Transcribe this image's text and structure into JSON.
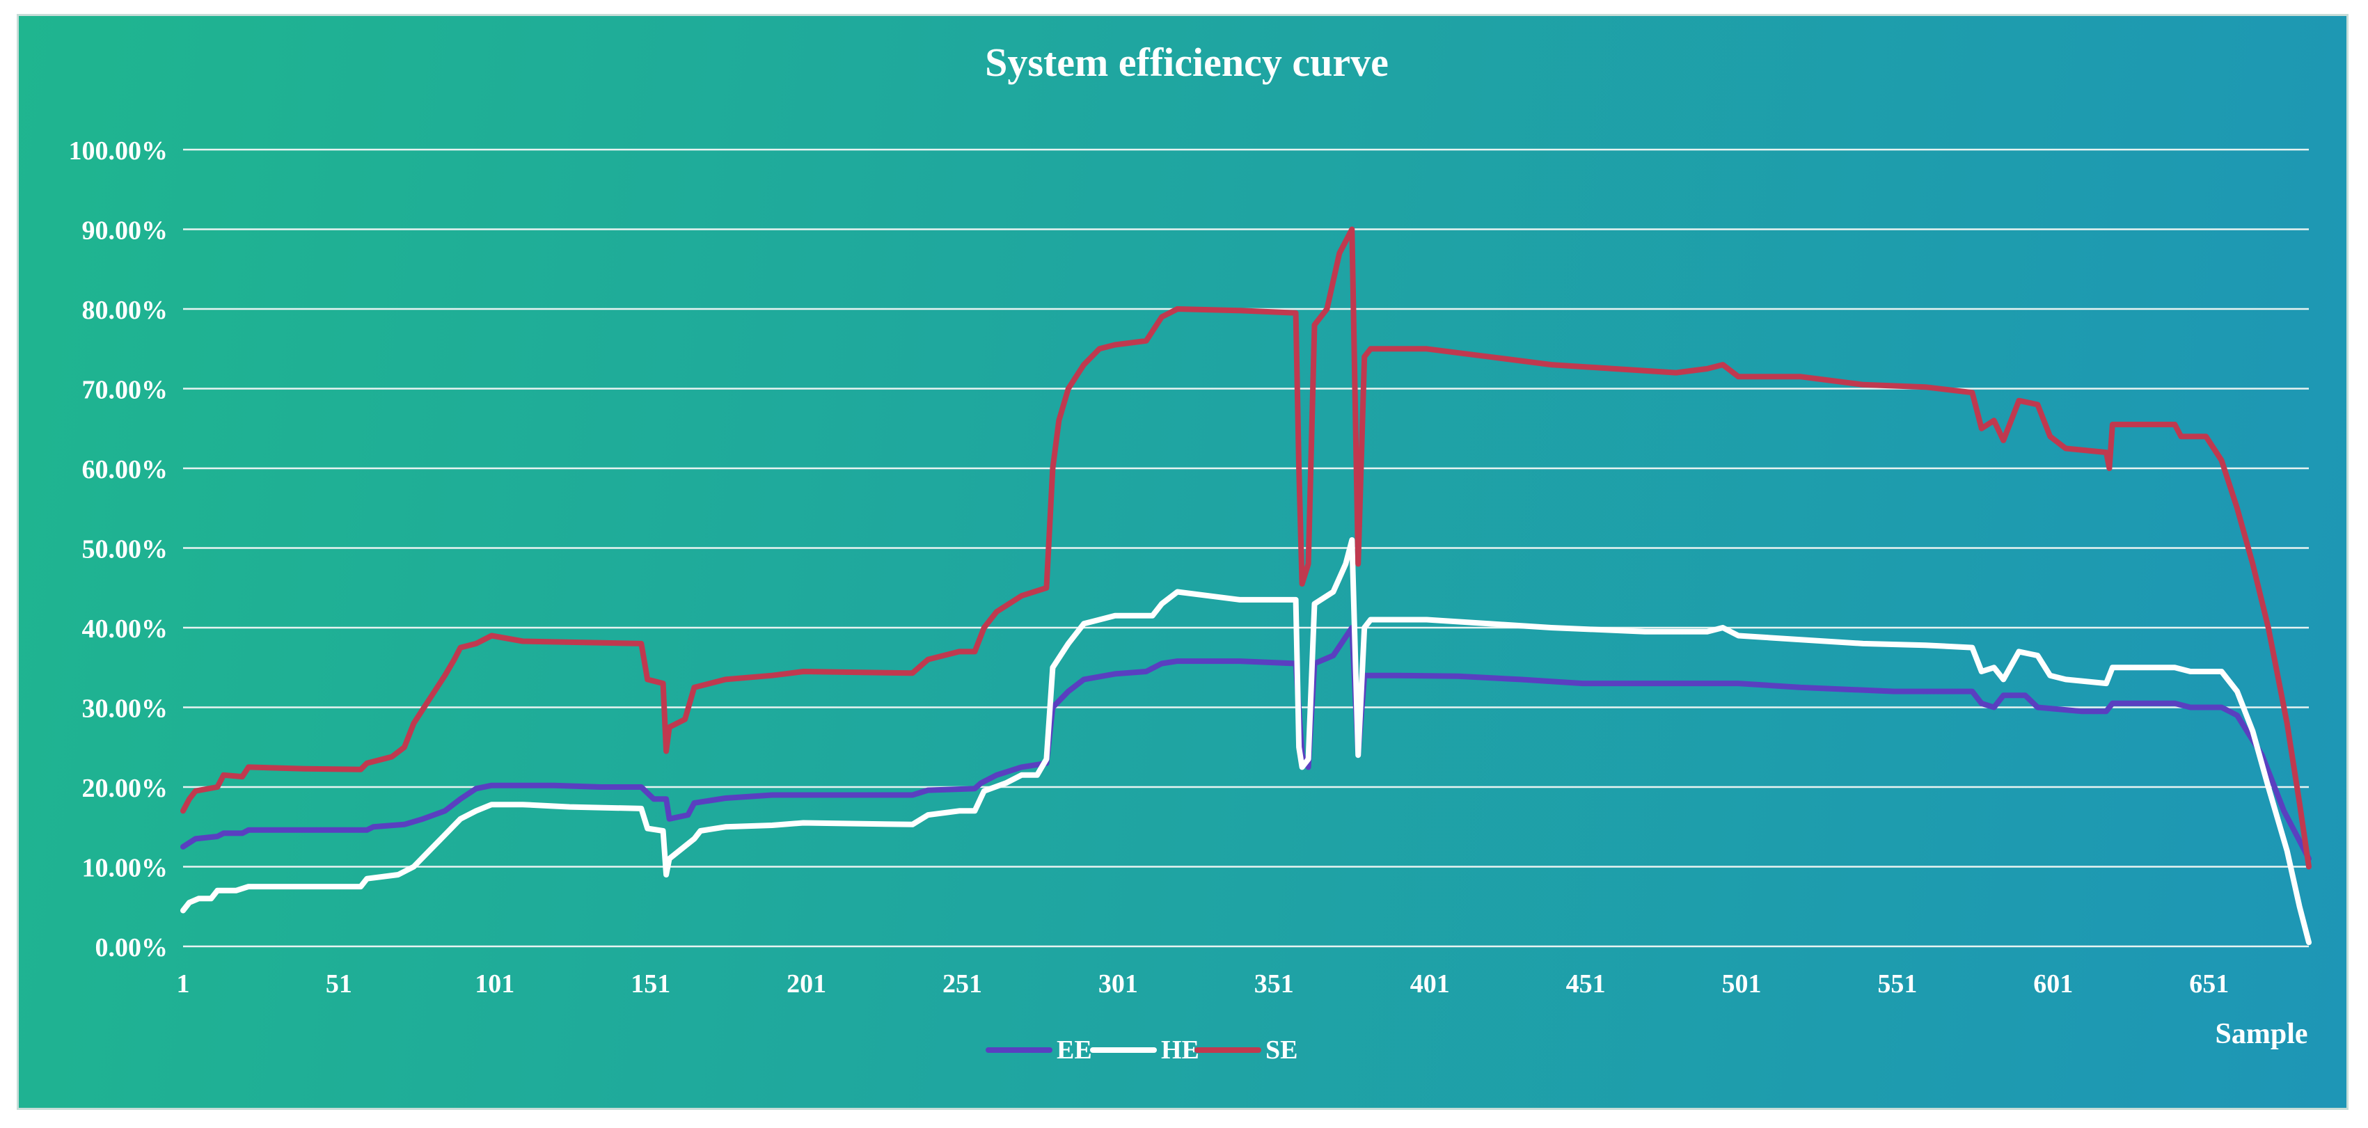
{
  "chart_data": {
    "type": "line",
    "title": "System efficiency curve",
    "xlabel": "Sample",
    "ylabel": "",
    "xlim": [
      1,
      683
    ],
    "ylim": [
      0,
      100
    ],
    "x_ticks": [
      1,
      51,
      101,
      151,
      201,
      251,
      301,
      351,
      401,
      451,
      501,
      551,
      601,
      651
    ],
    "y_ticks": [
      "0.00%",
      "10.00%",
      "20.00%",
      "30.00%",
      "40.00%",
      "50.00%",
      "60.00%",
      "70.00%",
      "80.00%",
      "90.00%",
      "100.00%"
    ],
    "grid": "horizontal",
    "legend_position": "bottom",
    "series": [
      {
        "name": "EE",
        "color": "#5a3fc0",
        "points": [
          [
            1,
            12.5
          ],
          [
            5,
            13.5
          ],
          [
            12,
            13.8
          ],
          [
            14,
            14.2
          ],
          [
            20,
            14.2
          ],
          [
            22,
            14.6
          ],
          [
            40,
            14.6
          ],
          [
            60,
            14.6
          ],
          [
            62,
            15
          ],
          [
            72,
            15.3
          ],
          [
            78,
            16
          ],
          [
            85,
            17
          ],
          [
            90,
            18.5
          ],
          [
            95,
            19.8
          ],
          [
            100,
            20.2
          ],
          [
            120,
            20.2
          ],
          [
            135,
            20
          ],
          [
            148,
            20
          ],
          [
            152,
            18.5
          ],
          [
            156,
            18.5
          ],
          [
            157,
            16
          ],
          [
            163,
            16.5
          ],
          [
            165,
            18
          ],
          [
            175,
            18.6
          ],
          [
            190,
            19
          ],
          [
            200,
            19
          ],
          [
            235,
            19
          ],
          [
            240,
            19.6
          ],
          [
            255,
            19.8
          ],
          [
            257,
            20.5
          ],
          [
            262,
            21.5
          ],
          [
            270,
            22.5
          ],
          [
            275,
            22.8
          ],
          [
            278,
            23
          ],
          [
            280,
            30
          ],
          [
            285,
            32
          ],
          [
            290,
            33.5
          ],
          [
            300,
            34.2
          ],
          [
            310,
            34.5
          ],
          [
            315,
            35.5
          ],
          [
            320,
            35.8
          ],
          [
            340,
            35.8
          ],
          [
            358,
            35.5
          ],
          [
            360,
            24
          ],
          [
            362,
            22.5
          ],
          [
            364,
            35.5
          ],
          [
            370,
            36.5
          ],
          [
            376,
            40
          ],
          [
            378,
            24
          ],
          [
            380,
            34
          ],
          [
            390,
            34
          ],
          [
            410,
            33.9
          ],
          [
            430,
            33.5
          ],
          [
            450,
            33
          ],
          [
            500,
            33
          ],
          [
            520,
            32.5
          ],
          [
            550,
            32
          ],
          [
            575,
            32
          ],
          [
            578,
            30.5
          ],
          [
            582,
            30
          ],
          [
            585,
            31.5
          ],
          [
            592,
            31.5
          ],
          [
            596,
            30
          ],
          [
            610,
            29.5
          ],
          [
            618,
            29.5
          ],
          [
            620,
            30.5
          ],
          [
            640,
            30.5
          ],
          [
            645,
            30
          ],
          [
            655,
            30
          ],
          [
            660,
            29
          ],
          [
            668,
            24
          ],
          [
            675,
            17
          ],
          [
            683,
            11
          ]
        ]
      },
      {
        "name": "HE",
        "color": "#ffffff",
        "points": [
          [
            1,
            4.5
          ],
          [
            3,
            5.5
          ],
          [
            6,
            6
          ],
          [
            10,
            6
          ],
          [
            12,
            7
          ],
          [
            18,
            7
          ],
          [
            22,
            7.5
          ],
          [
            40,
            7.5
          ],
          [
            58,
            7.5
          ],
          [
            60,
            8.5
          ],
          [
            70,
            9
          ],
          [
            75,
            10
          ],
          [
            80,
            12
          ],
          [
            85,
            14
          ],
          [
            90,
            16
          ],
          [
            95,
            17
          ],
          [
            100,
            17.8
          ],
          [
            110,
            17.8
          ],
          [
            125,
            17.5
          ],
          [
            148,
            17.3
          ],
          [
            150,
            14.8
          ],
          [
            155,
            14.5
          ],
          [
            156,
            9
          ],
          [
            157,
            11
          ],
          [
            165,
            13.5
          ],
          [
            167,
            14.5
          ],
          [
            175,
            15
          ],
          [
            190,
            15.2
          ],
          [
            200,
            15.5
          ],
          [
            235,
            15.3
          ],
          [
            240,
            16.5
          ],
          [
            250,
            17
          ],
          [
            255,
            17
          ],
          [
            258,
            19.5
          ],
          [
            265,
            20.5
          ],
          [
            270,
            21.5
          ],
          [
            275,
            21.5
          ],
          [
            278,
            23.5
          ],
          [
            280,
            35
          ],
          [
            285,
            38
          ],
          [
            290,
            40.5
          ],
          [
            300,
            41.5
          ],
          [
            312,
            41.5
          ],
          [
            315,
            43
          ],
          [
            320,
            44.5
          ],
          [
            330,
            44
          ],
          [
            340,
            43.5
          ],
          [
            358,
            43.5
          ],
          [
            359,
            25
          ],
          [
            360,
            22.5
          ],
          [
            362,
            23.5
          ],
          [
            364,
            43
          ],
          [
            370,
            44.5
          ],
          [
            374,
            48
          ],
          [
            376,
            51
          ],
          [
            378,
            24
          ],
          [
            380,
            40
          ],
          [
            382,
            41
          ],
          [
            400,
            41
          ],
          [
            420,
            40.5
          ],
          [
            440,
            40
          ],
          [
            470,
            39.5
          ],
          [
            490,
            39.5
          ],
          [
            495,
            40
          ],
          [
            500,
            39
          ],
          [
            520,
            38.5
          ],
          [
            540,
            38
          ],
          [
            560,
            37.8
          ],
          [
            575,
            37.5
          ],
          [
            578,
            34.5
          ],
          [
            582,
            35
          ],
          [
            585,
            33.5
          ],
          [
            590,
            37
          ],
          [
            596,
            36.5
          ],
          [
            600,
            34
          ],
          [
            605,
            33.5
          ],
          [
            618,
            33
          ],
          [
            620,
            35
          ],
          [
            640,
            35
          ],
          [
            645,
            34.5
          ],
          [
            655,
            34.5
          ],
          [
            660,
            32
          ],
          [
            665,
            27
          ],
          [
            670,
            20
          ],
          [
            676,
            12
          ],
          [
            680,
            5
          ],
          [
            683,
            0.5
          ]
        ]
      },
      {
        "name": "SE",
        "color": "#c0394f",
        "points": [
          [
            1,
            17
          ],
          [
            3,
            18.5
          ],
          [
            5,
            19.5
          ],
          [
            12,
            20
          ],
          [
            14,
            21.5
          ],
          [
            20,
            21.3
          ],
          [
            22,
            22.5
          ],
          [
            40,
            22.3
          ],
          [
            58,
            22.2
          ],
          [
            60,
            23
          ],
          [
            68,
            23.8
          ],
          [
            72,
            25
          ],
          [
            75,
            28
          ],
          [
            80,
            31
          ],
          [
            85,
            34
          ],
          [
            88,
            36
          ],
          [
            90,
            37.5
          ],
          [
            95,
            38
          ],
          [
            100,
            39
          ],
          [
            110,
            38.3
          ],
          [
            148,
            38
          ],
          [
            150,
            33.5
          ],
          [
            155,
            33
          ],
          [
            156,
            24.5
          ],
          [
            157,
            27.5
          ],
          [
            162,
            28.5
          ],
          [
            165,
            32.5
          ],
          [
            175,
            33.5
          ],
          [
            190,
            34
          ],
          [
            200,
            34.5
          ],
          [
            235,
            34.3
          ],
          [
            240,
            36
          ],
          [
            250,
            37
          ],
          [
            255,
            37
          ],
          [
            258,
            40
          ],
          [
            262,
            42
          ],
          [
            270,
            44
          ],
          [
            278,
            45
          ],
          [
            280,
            60
          ],
          [
            282,
            66
          ],
          [
            285,
            70
          ],
          [
            290,
            73
          ],
          [
            295,
            75
          ],
          [
            300,
            75.5
          ],
          [
            310,
            76
          ],
          [
            315,
            79
          ],
          [
            320,
            80
          ],
          [
            340,
            79.8
          ],
          [
            358,
            79.5
          ],
          [
            359,
            60
          ],
          [
            360,
            45.5
          ],
          [
            362,
            48
          ],
          [
            364,
            78
          ],
          [
            368,
            80
          ],
          [
            372,
            87
          ],
          [
            376,
            90
          ],
          [
            378,
            48
          ],
          [
            380,
            74
          ],
          [
            382,
            75
          ],
          [
            400,
            75
          ],
          [
            420,
            74
          ],
          [
            440,
            73
          ],
          [
            460,
            72.5
          ],
          [
            480,
            72
          ],
          [
            490,
            72.5
          ],
          [
            495,
            73
          ],
          [
            500,
            71.5
          ],
          [
            520,
            71.5
          ],
          [
            540,
            70.5
          ],
          [
            560,
            70.2
          ],
          [
            575,
            69.5
          ],
          [
            578,
            65
          ],
          [
            582,
            66
          ],
          [
            585,
            63.5
          ],
          [
            590,
            68.5
          ],
          [
            596,
            68
          ],
          [
            600,
            64
          ],
          [
            605,
            62.5
          ],
          [
            618,
            62
          ],
          [
            619,
            60
          ],
          [
            620,
            65.5
          ],
          [
            640,
            65.5
          ],
          [
            642,
            64
          ],
          [
            650,
            64
          ],
          [
            655,
            61
          ],
          [
            660,
            55
          ],
          [
            665,
            48
          ],
          [
            670,
            40
          ],
          [
            676,
            28
          ],
          [
            680,
            18
          ],
          [
            683,
            10
          ]
        ]
      }
    ]
  }
}
